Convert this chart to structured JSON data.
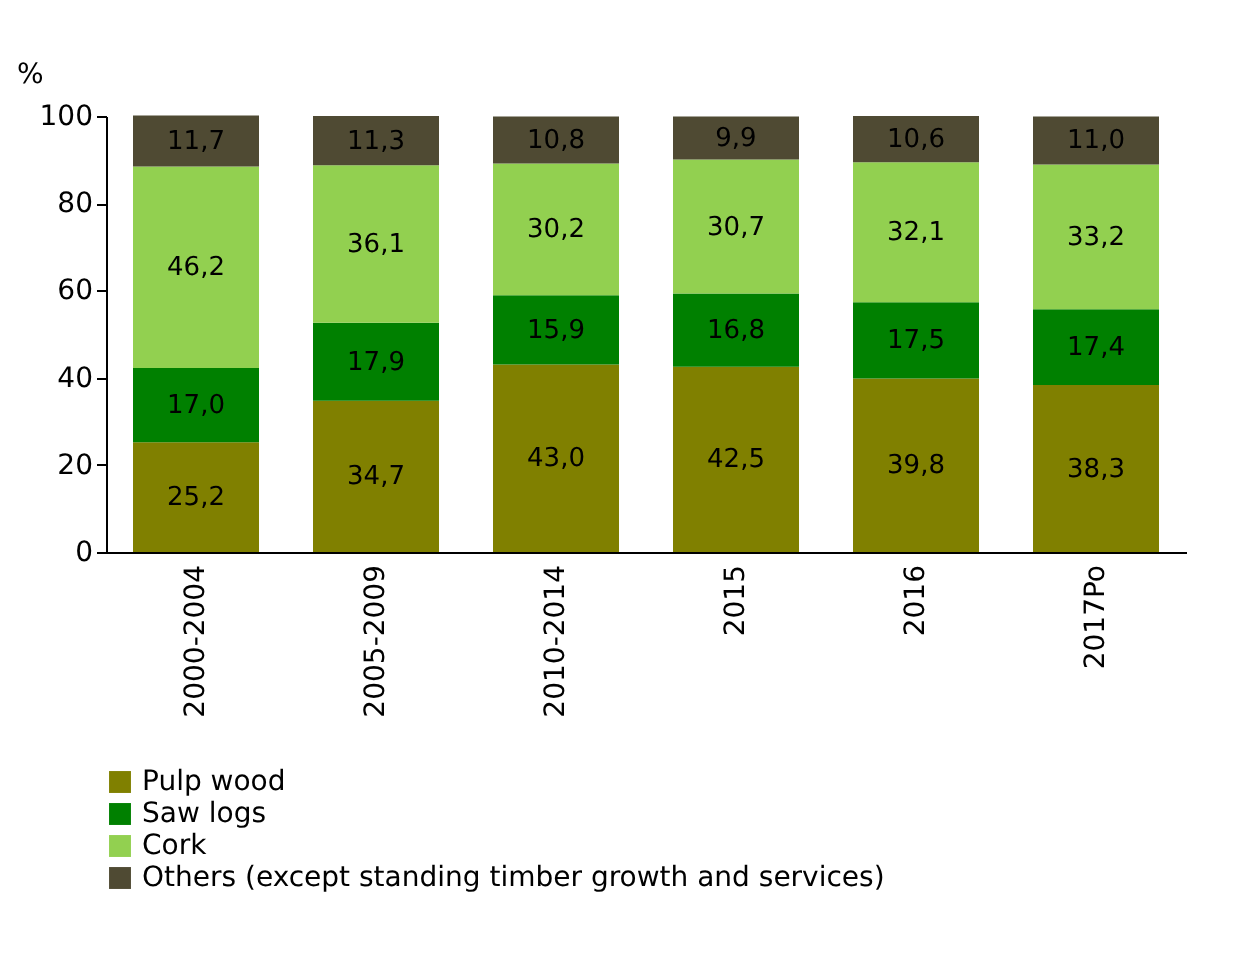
{
  "chart_data": {
    "type": "bar",
    "stacked": true,
    "ylabel": "%",
    "categories": [
      "2000-2004",
      "2005-2009",
      "2010-2014",
      "2015",
      "2016",
      "2017Po"
    ],
    "ylim": [
      0,
      100
    ],
    "yticks": [
      0,
      20,
      40,
      60,
      80,
      100
    ],
    "legend": "bottom",
    "series": [
      {
        "name": "Pulp wood",
        "color": "#808000",
        "values": [
          25.2,
          34.7,
          43.0,
          42.5,
          39.8,
          38.3
        ],
        "value_labels": [
          "25,2",
          "34,7",
          "43,0",
          "42,5",
          "39,8",
          "38,3"
        ]
      },
      {
        "name": "Saw logs",
        "color": "#008000",
        "values": [
          17.0,
          17.9,
          15.9,
          16.8,
          17.5,
          17.4
        ],
        "value_labels": [
          "17,0",
          "17,9",
          "15,9",
          "16,8",
          "17,5",
          "17,4"
        ]
      },
      {
        "name": "Cork",
        "color": "#92d050",
        "values": [
          46.2,
          36.1,
          30.2,
          30.7,
          32.1,
          33.2
        ],
        "value_labels": [
          "46,2",
          "36,1",
          "30,2",
          "30,7",
          "32,1",
          "33,2"
        ]
      },
      {
        "name": "Others (except standing timber growth and services)",
        "color": "#4f4a33",
        "values": [
          11.7,
          11.3,
          10.8,
          9.9,
          10.6,
          11.0
        ],
        "value_labels": [
          "11,7",
          "11,3",
          "10,8",
          "9,9",
          "10,6",
          "11,0"
        ]
      }
    ]
  }
}
